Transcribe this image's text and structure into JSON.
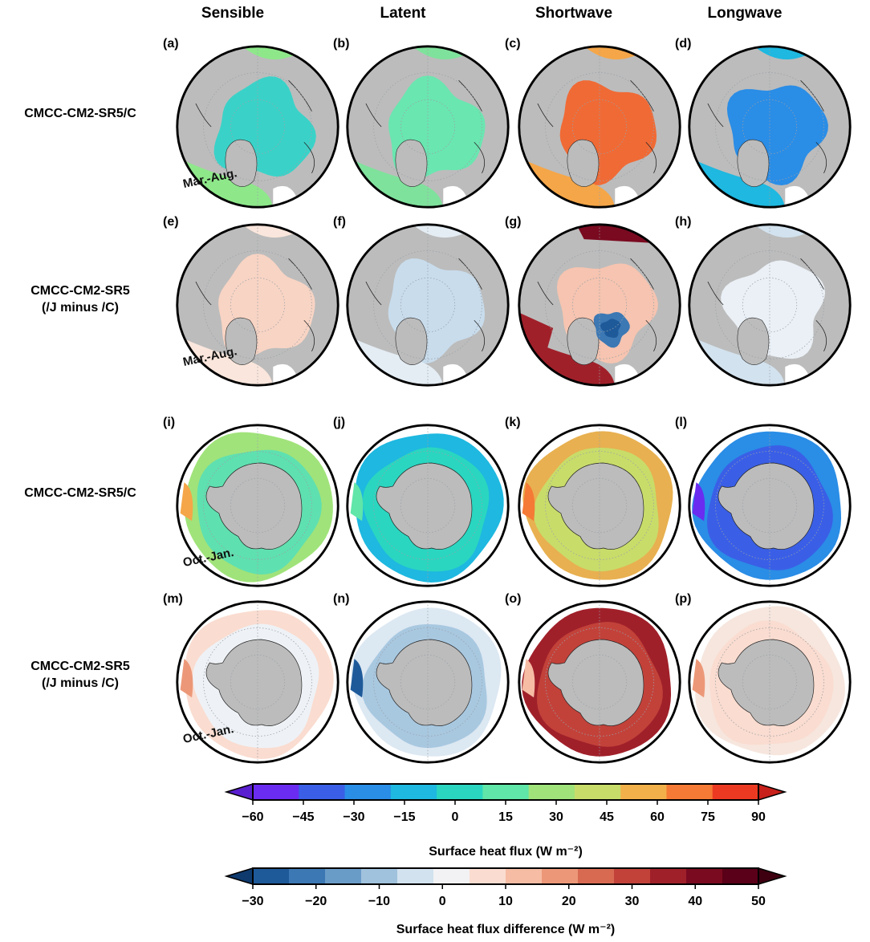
{
  "columns": [
    "Sensible",
    "Latent",
    "Shortwave",
    "Longwave"
  ],
  "rows": [
    {
      "label_line1": "CMCC-CM2-SR5/C",
      "label_line2": "",
      "season": "Mar.-Aug.",
      "hemisphere": "north",
      "kind": "absolute",
      "letters": [
        "(a)",
        "(b)",
        "(c)",
        "(d)"
      ]
    },
    {
      "label_line1": "CMCC-CM2-SR5",
      "label_line2": "(/J minus /C)",
      "season": "Mar.-Aug.",
      "hemisphere": "north",
      "kind": "difference",
      "letters": [
        "(e)",
        "(f)",
        "(g)",
        "(h)"
      ]
    },
    {
      "label_line1": "CMCC-CM2-SR5/C",
      "label_line2": "",
      "season": "Oct.-Jan.",
      "hemisphere": "south",
      "kind": "absolute",
      "letters": [
        "(i)",
        "(j)",
        "(k)",
        "(l)"
      ]
    },
    {
      "label_line1": "CMCC-CM2-SR5",
      "label_line2": "(/J minus /C)",
      "season": "Oct.-Jan.",
      "hemisphere": "south",
      "kind": "difference",
      "letters": [
        "(m)",
        "(n)",
        "(o)",
        "(p)"
      ]
    }
  ],
  "colorbar1": {
    "ticks": [
      "−60",
      "−45",
      "−30",
      "−15",
      "0",
      "15",
      "30",
      "45",
      "60",
      "75",
      "90"
    ],
    "colors": [
      "#6a2cf0",
      "#3a5fe6",
      "#2a8de6",
      "#1eb8e0",
      "#2ad6c0",
      "#5fe6a8",
      "#a0e37a",
      "#c8dc6a",
      "#f2b04a",
      "#f57a35",
      "#ec3a22"
    ],
    "under_color": "#5a1fd0",
    "over_color": "#c8201a",
    "title": "Surface heat flux (W m⁻²)"
  },
  "colorbar2": {
    "ticks": [
      "−30",
      "−20",
      "−10",
      "0",
      "10",
      "20",
      "30",
      "40",
      "50"
    ],
    "colors": [
      "#1e5a9a",
      "#3c78b4",
      "#6a9cc8",
      "#a0c2dc",
      "#d2e2ee",
      "#f2f2f4",
      "#fadcd0",
      "#f6bca4",
      "#ec9878",
      "#d86a52",
      "#c2423a",
      "#a0202a",
      "#7a0a20",
      "#5a0018"
    ],
    "under_color": "#0e3a6e",
    "over_color": "#3e0010",
    "title": "Surface heat flux difference (W m⁻²)"
  },
  "panel_fills": {
    "north_absolute": [
      {
        "main": "#3ad2c8",
        "rim": "#8ee88a",
        "accent": "#e83a20"
      },
      {
        "main": "#6ae6b0",
        "rim": "#7fe29c",
        "accent": "#7fe29c"
      },
      {
        "main": "#f06a35",
        "rim": "#f5a648",
        "accent": "#c8dc6a"
      },
      {
        "main": "#2a8de6",
        "rim": "#1eb8e0",
        "accent": "#3a5fe6"
      }
    ],
    "north_difference": [
      {
        "main": "#f8d4c4",
        "rim": "#fae6dc",
        "accent": "#ec9878"
      },
      {
        "main": "#c8dcec",
        "rim": "#e4edf4",
        "accent": "#a0c2dc"
      },
      {
        "main": "#f6c4b0",
        "rim": "#a0202a",
        "accent": "#1e5a9a"
      },
      {
        "main": "#eaf0f6",
        "rim": "#d2e2ee",
        "accent": "#6a9cc8"
      }
    ],
    "south_absolute": [
      {
        "main": "#5fe0b0",
        "rim": "#a0e37a",
        "accent": "#f5a648"
      },
      {
        "main": "#2ad6c0",
        "rim": "#1eb8e0",
        "accent": "#5fe6a8"
      },
      {
        "main": "#c8dc6a",
        "rim": "#e8b050",
        "accent": "#f57a35"
      },
      {
        "main": "#3a5fe6",
        "rim": "#2a8de6",
        "accent": "#6a2cf0"
      }
    ],
    "south_difference": [
      {
        "main": "#eef2f6",
        "rim": "#fadcd0",
        "accent": "#ec9878"
      },
      {
        "main": "#a8c8e0",
        "rim": "#dce8f2",
        "accent": "#1e5a9a"
      },
      {
        "main": "#c2423a",
        "rim": "#a0202a",
        "accent": "#f6bca4"
      },
      {
        "main": "#fadcd0",
        "rim": "#f6e6de",
        "accent": "#ec9878"
      }
    ]
  }
}
